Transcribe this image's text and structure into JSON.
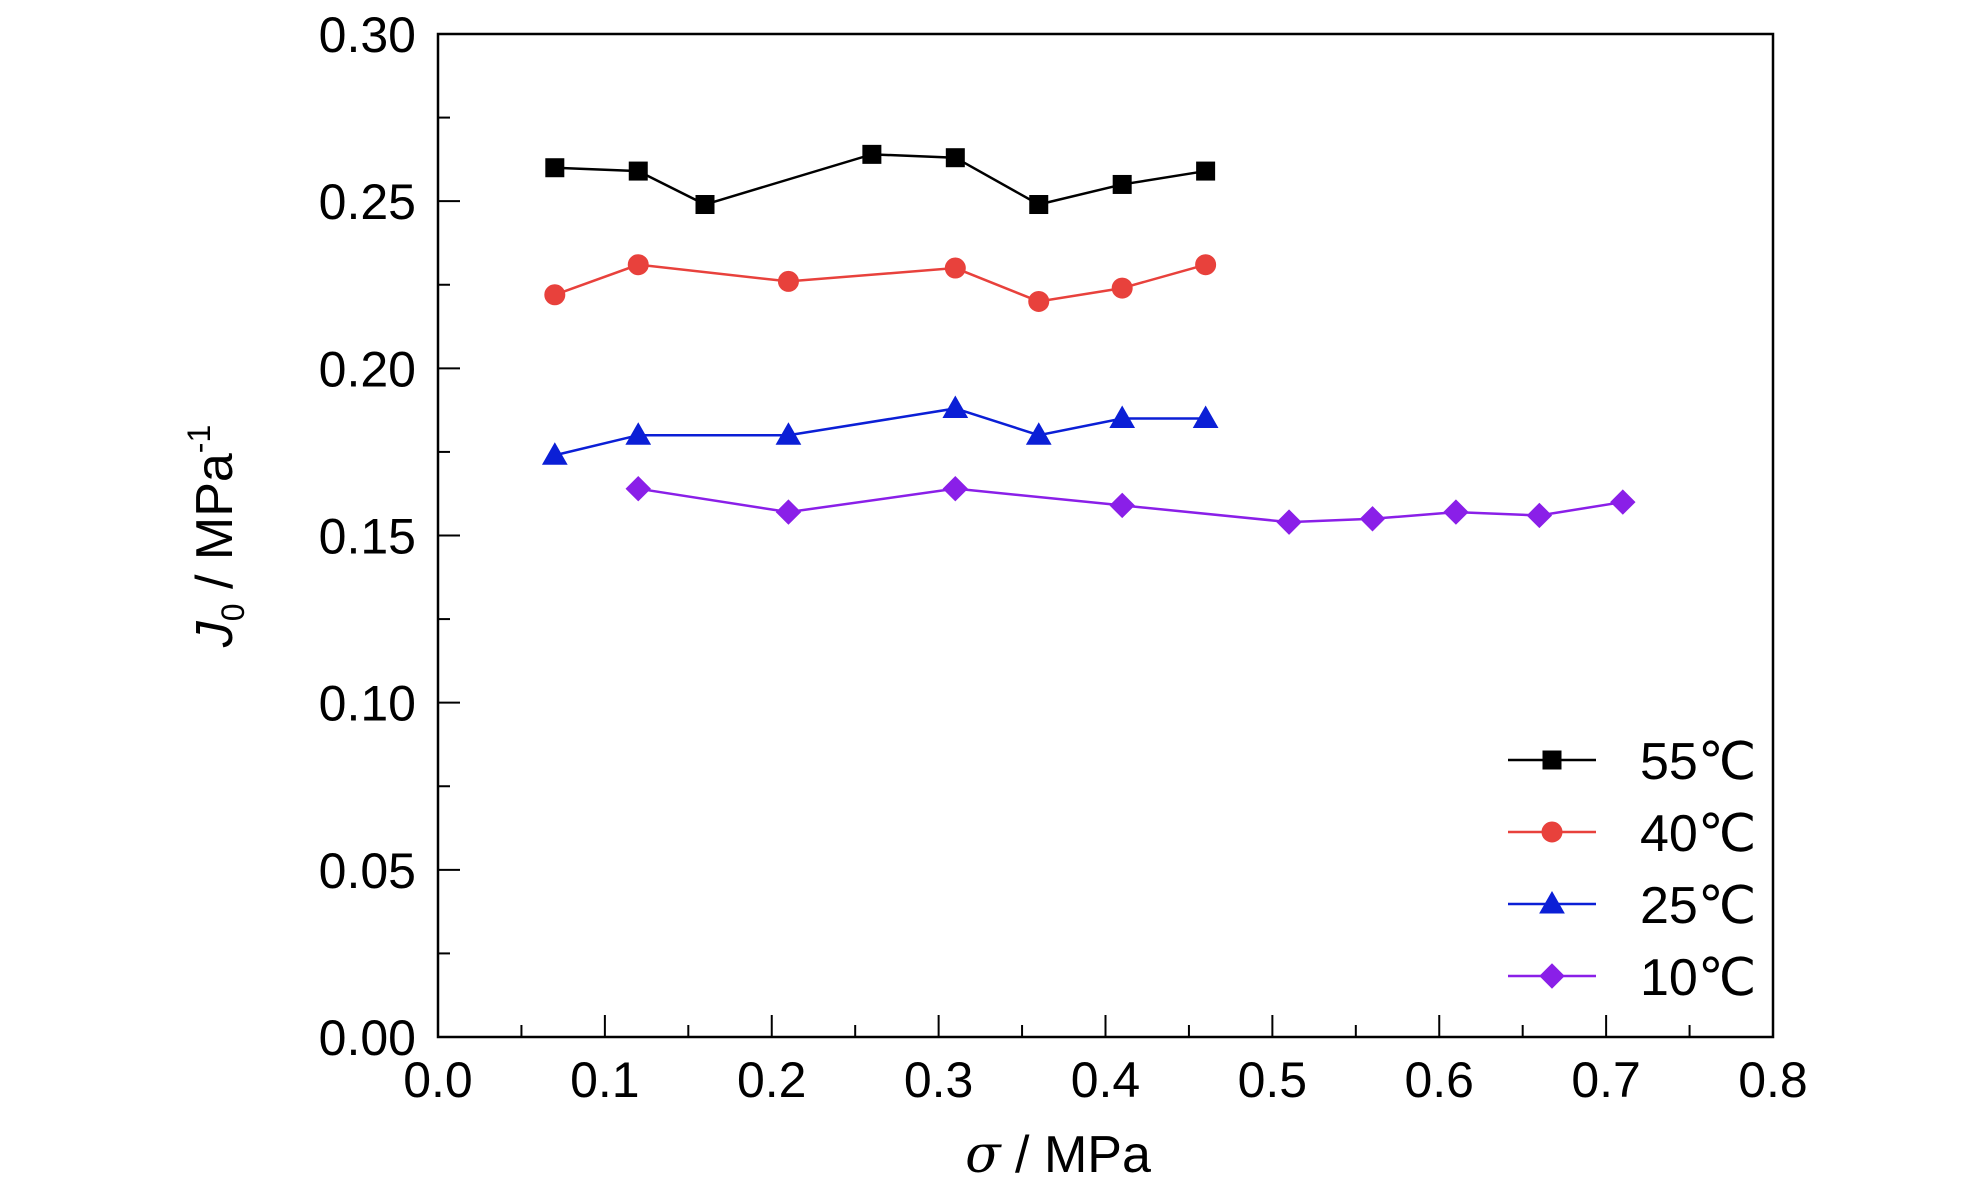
{
  "chart_data": {
    "type": "line",
    "xlabel": {
      "symbol": "σ",
      "unit": " / MPa"
    },
    "ylabel": {
      "symbol": "J",
      "subscript": "0",
      "unit": " / MPa",
      "superscript": "-1"
    },
    "xlim": [
      0.0,
      0.8
    ],
    "ylim": [
      0.0,
      0.3
    ],
    "xticks": [
      "0.0",
      "0.1",
      "0.2",
      "0.3",
      "0.4",
      "0.5",
      "0.6",
      "0.7",
      "0.8"
    ],
    "yticks": [
      "0.00",
      "0.05",
      "0.10",
      "0.15",
      "0.20",
      "0.25",
      "0.30"
    ],
    "grid": false,
    "legend_position": "bottom-right",
    "series": [
      {
        "name": "55℃",
        "color": "#000000",
        "marker": "square",
        "x": [
          0.07,
          0.12,
          0.16,
          0.26,
          0.31,
          0.36,
          0.41,
          0.46
        ],
        "y": [
          0.26,
          0.259,
          0.249,
          0.264,
          0.263,
          0.249,
          0.255,
          0.259
        ]
      },
      {
        "name": "40℃",
        "color": "#e8413c",
        "marker": "circle",
        "x": [
          0.07,
          0.12,
          0.21,
          0.31,
          0.36,
          0.41,
          0.46
        ],
        "y": [
          0.222,
          0.231,
          0.226,
          0.23,
          0.22,
          0.224,
          0.231
        ]
      },
      {
        "name": "25℃",
        "color": "#0b1fd6",
        "marker": "triangle",
        "x": [
          0.07,
          0.12,
          0.21,
          0.31,
          0.36,
          0.41,
          0.46
        ],
        "y": [
          0.174,
          0.18,
          0.18,
          0.188,
          0.18,
          0.185,
          0.185
        ]
      },
      {
        "name": "10℃",
        "color": "#8a1fe8",
        "marker": "diamond",
        "x": [
          0.12,
          0.21,
          0.31,
          0.41,
          0.51,
          0.56,
          0.61,
          0.66,
          0.71
        ],
        "y": [
          0.164,
          0.157,
          0.164,
          0.159,
          0.154,
          0.155,
          0.157,
          0.156,
          0.16
        ]
      }
    ]
  }
}
